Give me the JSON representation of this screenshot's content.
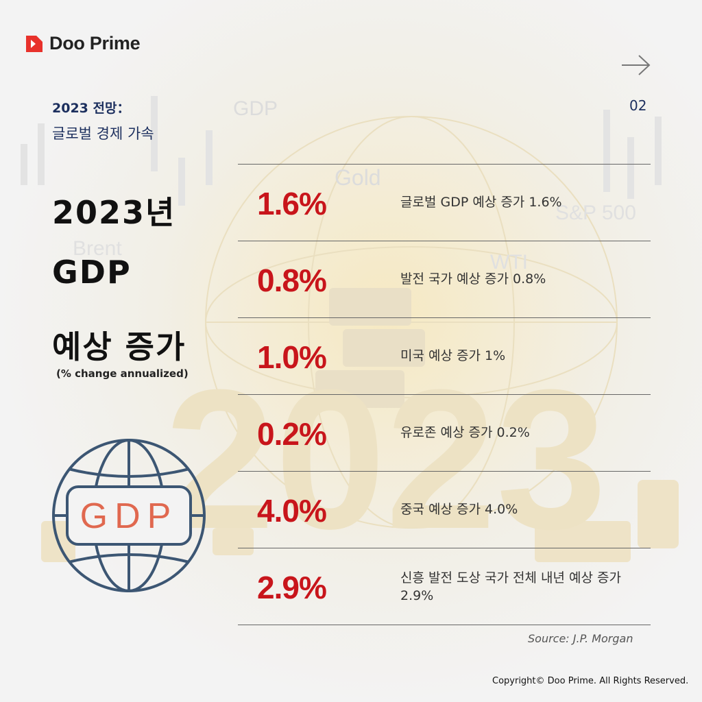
{
  "brand": {
    "name": "Doo Prime"
  },
  "page_number": "02",
  "header": {
    "title": "2023 전망：",
    "subtitle": "글로벌 경제 가속"
  },
  "headline": {
    "line1": "2023년",
    "line2": "GDP",
    "line3": "예상 증가",
    "note": "(% change annualized)"
  },
  "background_labels": {
    "gdp": "GDP",
    "gold": "Gold",
    "brent": "Brent",
    "wti": "WTI",
    "sp500": "S&P 500",
    "year": "2023"
  },
  "forecasts": [
    {
      "value": "1.6%",
      "label": "글로벌 GDP 예상 증가 1.6%"
    },
    {
      "value": "0.8%",
      "label": "발전 국가 예상 증가 0.8%"
    },
    {
      "value": "1.0%",
      "label": "미국 예상 증가 1%"
    },
    {
      "value": "0.2%",
      "label": "유로존 예상 증가 0.2%"
    },
    {
      "value": "4.0%",
      "label": "중국 예상 증가 4.0%"
    },
    {
      "value": "2.9%",
      "label": "신흥 발전 도상 국가 전체 내년 예상 증가 2.9%"
    }
  ],
  "globe_badge": "GDP",
  "source": "Source: J.P. Morgan",
  "copyright": "Copyright© Doo Prime. All Rights Reserved.",
  "colors": {
    "accent_red": "#c8151b",
    "navy": "#1c2f5e",
    "globe": "#3c5673",
    "badge_text": "#e0684f"
  },
  "icons": {
    "logo": "doo-prime-logo-icon",
    "next": "right-arrow-icon",
    "globe": "globe-icon"
  }
}
